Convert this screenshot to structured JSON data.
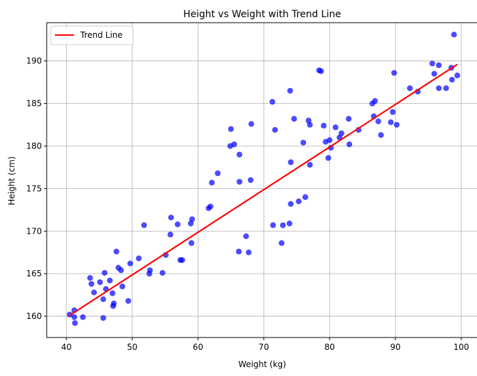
{
  "chart_data": {
    "type": "scatter",
    "title": "Height vs Weight with Trend Line",
    "xlabel": "Weight (kg)",
    "ylabel": "Height (cm)",
    "xlim": [
      37,
      102.5
    ],
    "ylim": [
      157.5,
      194.5
    ],
    "xticks": [
      40,
      50,
      60,
      70,
      80,
      90,
      100
    ],
    "yticks": [
      160,
      165,
      170,
      175,
      180,
      185,
      190
    ],
    "grid": true,
    "legend_position": "top-left",
    "colors": {
      "points": "#0000ff",
      "trend": "#ff0000"
    },
    "series": [
      {
        "kind": "scatter",
        "color": "#0000ff",
        "points": [
          [
            40.5,
            160.2
          ],
          [
            41.2,
            160.7
          ],
          [
            41.2,
            159.9
          ],
          [
            41.3,
            159.2
          ],
          [
            42.5,
            159.9
          ],
          [
            43.6,
            164.5
          ],
          [
            43.8,
            163.8
          ],
          [
            44.2,
            162.8
          ],
          [
            45.1,
            164.0
          ],
          [
            45.6,
            162.0
          ],
          [
            45.6,
            159.8
          ],
          [
            45.8,
            165.1
          ],
          [
            46.0,
            163.2
          ],
          [
            46.6,
            164.2
          ],
          [
            47.0,
            162.7
          ],
          [
            47.1,
            161.2
          ],
          [
            47.2,
            161.5
          ],
          [
            47.6,
            167.6
          ],
          [
            47.9,
            165.7
          ],
          [
            48.3,
            165.4
          ],
          [
            48.5,
            163.5
          ],
          [
            49.4,
            161.8
          ],
          [
            49.7,
            166.2
          ],
          [
            51.0,
            166.8
          ],
          [
            51.8,
            170.7
          ],
          [
            52.6,
            165.0
          ],
          [
            52.7,
            165.4
          ],
          [
            54.6,
            165.1
          ],
          [
            55.1,
            167.2
          ],
          [
            55.8,
            169.6
          ],
          [
            55.9,
            171.6
          ],
          [
            56.9,
            170.8
          ],
          [
            57.3,
            166.6
          ],
          [
            57.6,
            166.6
          ],
          [
            58.9,
            170.9
          ],
          [
            59.0,
            168.6
          ],
          [
            59.1,
            171.4
          ],
          [
            61.6,
            172.7
          ],
          [
            61.9,
            172.9
          ],
          [
            62.1,
            175.7
          ],
          [
            63.0,
            176.8
          ],
          [
            64.9,
            180.0
          ],
          [
            65.0,
            182.0
          ],
          [
            65.5,
            180.2
          ],
          [
            66.2,
            167.6
          ],
          [
            66.3,
            175.8
          ],
          [
            66.3,
            179.0
          ],
          [
            67.3,
            169.4
          ],
          [
            67.7,
            167.5
          ],
          [
            68.0,
            176.0
          ],
          [
            68.1,
            182.6
          ],
          [
            71.3,
            185.2
          ],
          [
            71.4,
            170.7
          ],
          [
            71.7,
            181.9
          ],
          [
            72.7,
            168.6
          ],
          [
            72.9,
            170.7
          ],
          [
            73.9,
            170.9
          ],
          [
            74.0,
            186.5
          ],
          [
            74.1,
            178.1
          ],
          [
            74.1,
            173.2
          ],
          [
            74.6,
            183.2
          ],
          [
            75.3,
            173.5
          ],
          [
            76.0,
            180.4
          ],
          [
            76.3,
            174.0
          ],
          [
            76.8,
            183.0
          ],
          [
            77.0,
            182.5
          ],
          [
            77.0,
            177.8
          ],
          [
            78.4,
            188.9
          ],
          [
            78.7,
            188.8
          ],
          [
            79.1,
            182.4
          ],
          [
            79.4,
            180.5
          ],
          [
            79.8,
            178.6
          ],
          [
            80.0,
            180.7
          ],
          [
            80.2,
            179.8
          ],
          [
            80.9,
            182.2
          ],
          [
            81.5,
            181.0
          ],
          [
            81.8,
            181.5
          ],
          [
            82.9,
            183.2
          ],
          [
            83.0,
            180.2
          ],
          [
            84.4,
            181.9
          ],
          [
            86.5,
            185.0
          ],
          [
            86.7,
            183.5
          ],
          [
            86.9,
            185.3
          ],
          [
            87.4,
            182.9
          ],
          [
            87.8,
            181.3
          ],
          [
            89.3,
            182.8
          ],
          [
            89.6,
            184.0
          ],
          [
            89.8,
            188.6
          ],
          [
            90.2,
            182.5
          ],
          [
            92.2,
            186.8
          ],
          [
            93.4,
            186.4
          ],
          [
            95.6,
            189.7
          ],
          [
            95.9,
            188.5
          ],
          [
            96.6,
            186.8
          ],
          [
            96.6,
            189.5
          ],
          [
            97.7,
            186.8
          ],
          [
            98.5,
            189.2
          ],
          [
            98.6,
            187.8
          ],
          [
            98.9,
            193.1
          ],
          [
            99.4,
            188.3
          ]
        ]
      },
      {
        "kind": "line",
        "name": "Trend Line",
        "color": "#ff0000",
        "x": [
          40.5,
          99.4
        ],
        "y": [
          160.1,
          189.6
        ]
      }
    ]
  }
}
